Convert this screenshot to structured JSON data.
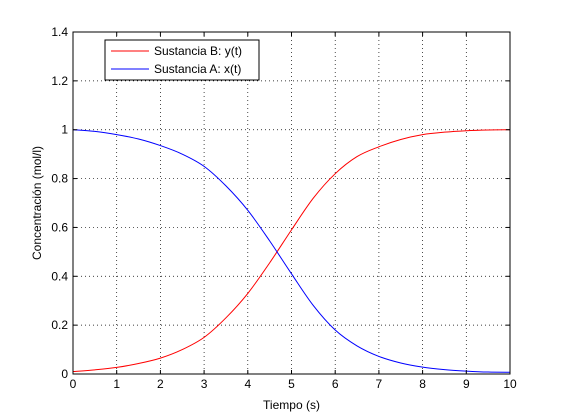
{
  "chart_data": {
    "type": "line",
    "title": "",
    "xlabel": "Tiempo (s)",
    "ylabel": "Concentración (mol/l)",
    "xlim": [
      0,
      10
    ],
    "ylim": [
      0,
      1.4
    ],
    "xticks": [
      "0",
      "1",
      "2",
      "3",
      "4",
      "5",
      "6",
      "7",
      "8",
      "9",
      "10"
    ],
    "yticks": [
      "0",
      "0.2",
      "0.4",
      "0.6",
      "0.8",
      "1",
      "1.2",
      "1.4"
    ],
    "grid": true,
    "legend_position": "top-left",
    "series": [
      {
        "name": "Sustancia B: y(t)",
        "color": "#ff0000",
        "x": [
          0,
          0.5,
          1,
          1.5,
          2,
          2.5,
          3,
          3.5,
          4,
          4.5,
          5,
          5.5,
          6,
          6.5,
          7,
          7.5,
          8,
          8.5,
          9,
          9.5,
          10
        ],
        "y": [
          0.01,
          0.017,
          0.027,
          0.043,
          0.065,
          0.1,
          0.15,
          0.23,
          0.33,
          0.455,
          0.59,
          0.72,
          0.82,
          0.89,
          0.93,
          0.96,
          0.98,
          0.99,
          0.996,
          0.999,
          1.0
        ]
      },
      {
        "name": "Sustancia A: x(t)",
        "color": "#0000ff",
        "x": [
          0,
          0.5,
          1,
          1.5,
          2,
          2.5,
          3,
          3.5,
          4,
          4.5,
          5,
          5.5,
          6,
          6.5,
          7,
          7.5,
          8,
          8.5,
          9,
          9.5,
          10
        ],
        "y": [
          1.0,
          0.993,
          0.98,
          0.962,
          0.935,
          0.9,
          0.85,
          0.77,
          0.67,
          0.545,
          0.41,
          0.28,
          0.18,
          0.115,
          0.072,
          0.045,
          0.028,
          0.018,
          0.012,
          0.008,
          0.007
        ]
      }
    ]
  }
}
